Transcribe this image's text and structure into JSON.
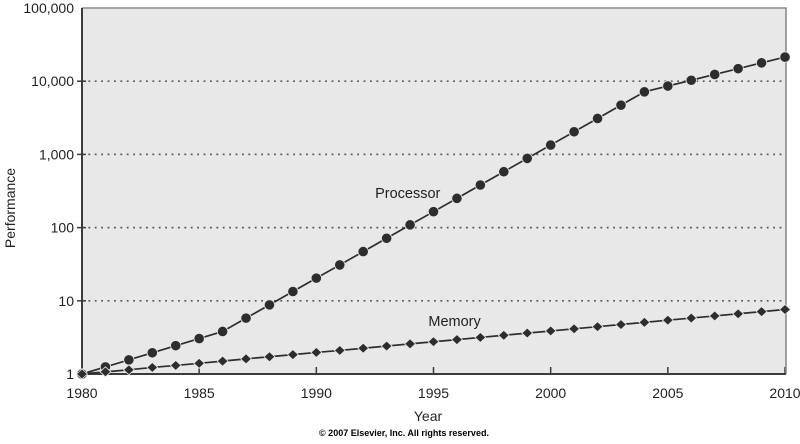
{
  "figure": {
    "ylabel": "Performance",
    "xlabel": "Year",
    "copyright": "© 2007 Elsevier, Inc. All rights reserved."
  },
  "chart_data": {
    "type": "line",
    "title": "",
    "xlabel": "Year",
    "ylabel": "Performance",
    "y_scale": "log",
    "x_range": [
      1980,
      2010
    ],
    "y_range": [
      1,
      100000
    ],
    "x_ticks": [
      1980,
      1985,
      1990,
      1995,
      2000,
      2005,
      2010
    ],
    "y_ticks": [
      1,
      10,
      100,
      1000,
      10000,
      100000
    ],
    "y_tick_labels": [
      "1",
      "10",
      "100",
      "1,000",
      "10,000",
      "100,000"
    ],
    "grid": "horizontal dotted lines at each power of ten",
    "legend": "inline text labels next to each series",
    "colors": {
      "series": "#2d2d2d",
      "plot_background": "#e8e8e8",
      "gridline": "#55565a",
      "axis_dark": "#3b3b3b",
      "axis_light": "#8a8b8d",
      "text": "#231f20"
    },
    "x": [
      1980,
      1981,
      1982,
      1983,
      1984,
      1985,
      1986,
      1987,
      1988,
      1989,
      1990,
      1991,
      1992,
      1993,
      1994,
      1995,
      1996,
      1997,
      1998,
      1999,
      2000,
      2001,
      2002,
      2003,
      2004,
      2005,
      2006,
      2007,
      2008,
      2009,
      2010
    ],
    "series": [
      {
        "name": "Processor",
        "marker": "circle",
        "values": [
          1,
          1.25,
          1.56,
          1.95,
          2.44,
          3.05,
          3.81,
          5.8,
          8.8,
          13.4,
          20.4,
          30.9,
          47,
          71.5,
          109,
          165,
          251,
          382,
          580,
          882,
          1341,
          2038,
          3097,
          4708,
          7156,
          8587,
          10304,
          12365,
          14838,
          17806,
          21367
        ]
      },
      {
        "name": "Memory",
        "marker": "diamond",
        "values": [
          1,
          1.07,
          1.14,
          1.23,
          1.31,
          1.4,
          1.5,
          1.61,
          1.72,
          1.84,
          1.97,
          2.1,
          2.25,
          2.41,
          2.58,
          2.76,
          2.95,
          3.16,
          3.38,
          3.62,
          3.87,
          4.14,
          4.43,
          4.74,
          5.07,
          5.43,
          5.81,
          6.21,
          6.65,
          7.11,
          7.61
        ]
      }
    ],
    "annotations": [
      {
        "text": "Processor",
        "x": 1993.9,
        "y": 297
      },
      {
        "text": "Memory",
        "x": 1995.9,
        "y": 5.3
      }
    ]
  }
}
